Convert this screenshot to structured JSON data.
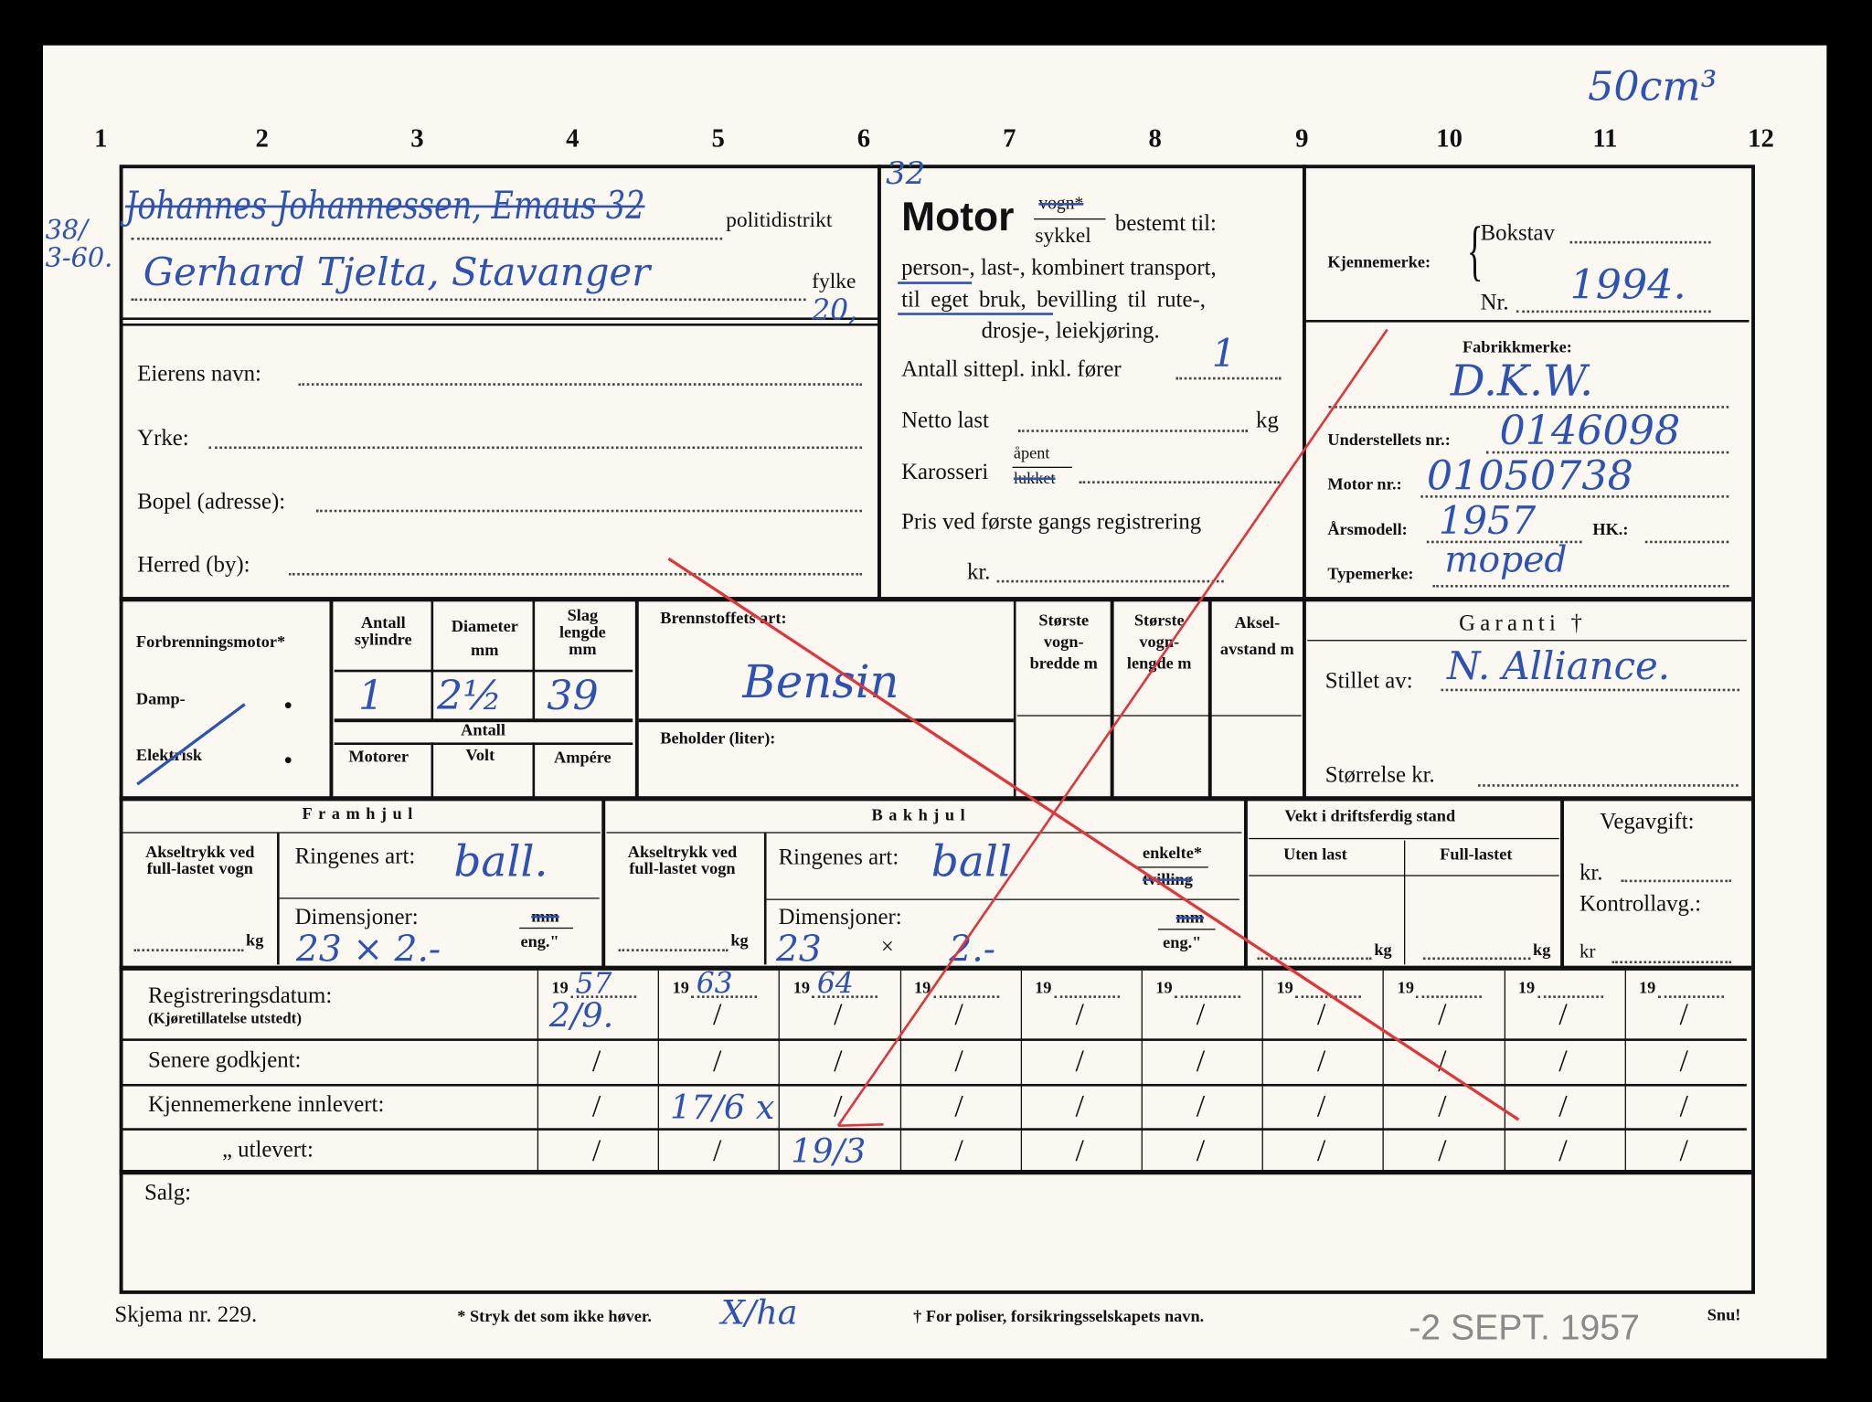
{
  "column_numbers": [
    "1",
    "2",
    "3",
    "4",
    "5",
    "6",
    "7",
    "8",
    "9",
    "10",
    "11",
    "12"
  ],
  "corner_note": "50cm³",
  "owner_section": {
    "line1_handwritten": "Johannes Johannessen, Emaus 32",
    "line1_label": "politidistrikt",
    "line2_margin_note": "38/ 3-60.",
    "line2_handwritten": "Gerhard Tjelta, Stavanger",
    "line2_label": "fylke",
    "line2_extra": "20,",
    "fields": [
      {
        "label": "Eierens navn:",
        "value": ""
      },
      {
        "label": "Yrke:",
        "value": ""
      },
      {
        "label": "Bopel (adresse):",
        "value": ""
      },
      {
        "label": "Herred (by):",
        "value": ""
      }
    ]
  },
  "motor_section": {
    "title": "Motor",
    "type_top": "vogn*",
    "type_bottom": "sykkel",
    "purpose_label": "bestemt til:",
    "purpose_line1": "person-, last-, kombinert transport,",
    "purpose_line2": "til eget bruk, bevilling til rute-,",
    "purpose_line3": "drosje-, leiekjøring.",
    "seats_label": "Antall sittepl. inkl. fører",
    "seats_value": "1",
    "net_load_label": "Netto last",
    "net_load_unit": "kg",
    "body_label": "Karosseri",
    "body_top": "åpent",
    "body_bottom": "lukket",
    "price_label": "Pris ved første gangs registrering",
    "price_currency": "kr."
  },
  "registration_mark": {
    "label": "Kjennemerke:",
    "letter_label": "Bokstav",
    "letter_value": "",
    "number_label": "Nr.",
    "number_value": "1994."
  },
  "vehicle": {
    "make_label": "Fabrikkmerke:",
    "make_value": "D.K.W.",
    "chassis_label": "Understellets nr.:",
    "chassis_value": "0146098",
    "engine_label": "Motor nr.:",
    "engine_value": "01050738",
    "year_label": "Årsmodell:",
    "year_value": "1957",
    "hp_label": "HK.:",
    "type_label": "Typemerke:",
    "type_value": "moped"
  },
  "engine": {
    "kind_combustion": "Forbrenningsmotor*",
    "kind_steam": "Damp-",
    "kind_electric": "Elektrisk",
    "cyl_header": "Antall sylindre",
    "diameter_header": "Diameter mm",
    "stroke_header": "Slag lengde mm",
    "cyl_value": "1",
    "diameter_value": "2½",
    "stroke_value": "39",
    "antall_label": "Antall",
    "motors_header": "Motorer",
    "volt_header": "Volt",
    "ampere_header": "Ampére",
    "fuel_label": "Brennstoffets art:",
    "fuel_value": "Bensin",
    "tank_label": "Beholder (liter):",
    "width_header": "Største vogn-bredde m",
    "length_header": "Største vogn-lengde m",
    "wheelbase_header": "Aksel-avstand m"
  },
  "guarantee": {
    "title": "Garanti †",
    "issued_label": "Stillet av:",
    "issued_value": "N. Alliance.",
    "size_label": "Størrelse kr."
  },
  "wheels": {
    "front_title": "Framhjul",
    "rear_title": "Bakhjul",
    "axle_label": "Akseltrykk ved full-lastet vogn",
    "kg": "kg",
    "tyre_label": "Ringenes art:",
    "front_tyre": "ball.",
    "rear_tyre": "ball",
    "single": "enkelte*",
    "twin": "tvilling",
    "dims_label": "Dimensjoner:",
    "mm": "mm",
    "eng": "eng.\"",
    "front_dims": "23 × 2.-",
    "rear_dims_a": "23",
    "rear_dims_x": "×",
    "rear_dims_b": "2.-"
  },
  "weight": {
    "title": "Vekt i driftsferdig stand",
    "empty": "Uten last",
    "full": "Full-lastet",
    "kg": "kg"
  },
  "road_tax": {
    "title": "Vegavgift:",
    "kr1": "kr.",
    "control": "Kontrollavg.:",
    "kr2": "kr"
  },
  "registration_table": {
    "rows": [
      "Registreringsdatum:",
      "Senere godkjent:",
      "Kjennemerkene innlevert:",
      "„          utlevert:"
    ],
    "row0_sub": "(Kjøretillatelse utstedt)",
    "year_prefix": "19",
    "columns": [
      {
        "year": "57",
        "cells": [
          "2/9.",
          "/",
          "/",
          "/"
        ]
      },
      {
        "year": "63",
        "cells": [
          "/",
          "/",
          "17/6 x",
          "/"
        ]
      },
      {
        "year": "64",
        "cells": [
          "/",
          "/",
          "/",
          "19/3"
        ]
      },
      {
        "year": "",
        "cells": [
          "/",
          "/",
          "/",
          "/"
        ]
      },
      {
        "year": "",
        "cells": [
          "/",
          "/",
          "/",
          "/"
        ]
      },
      {
        "year": "",
        "cells": [
          "/",
          "/",
          "/",
          "/"
        ]
      },
      {
        "year": "",
        "cells": [
          "/",
          "/",
          "/",
          "/"
        ]
      },
      {
        "year": "",
        "cells": [
          "/",
          "/",
          "/",
          "/"
        ]
      },
      {
        "year": "",
        "cells": [
          "/",
          "/",
          "/",
          "/"
        ]
      },
      {
        "year": "",
        "cells": [
          "/",
          "/",
          "/",
          "/"
        ]
      }
    ]
  },
  "sale_label": "Salg:",
  "footer": {
    "form_no": "Skjema nr. 229.",
    "note1": "* Stryk det som ikke høver.",
    "initials": "X/ha",
    "note2": "† For poliser, forsikringsselskapets navn.",
    "stamp": "-2 SEPT. 1957",
    "turn": "Snu!"
  },
  "colors": {
    "ink": "#2d52b4",
    "red_cross": "#e0353a",
    "paper": "#faf8f0"
  }
}
